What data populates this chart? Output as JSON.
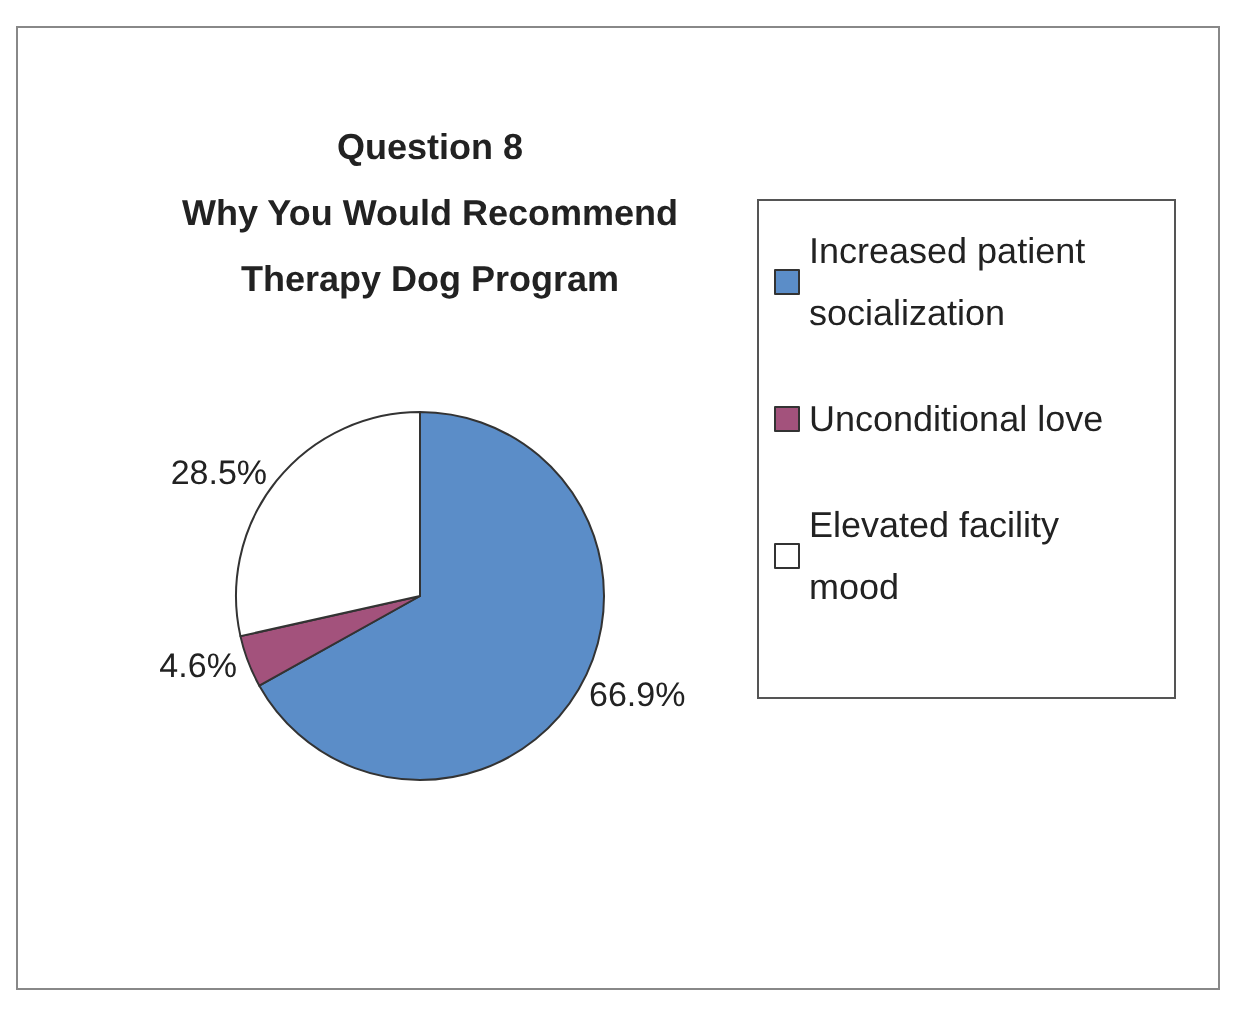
{
  "chart_data": {
    "type": "pie",
    "title": "Question 8\nWhy You Would Recommend\nTherapy Dog Program",
    "categories": [
      "Increased patient socialization",
      "Unconditional love",
      "Elevated facility mood"
    ],
    "values": [
      66.9,
      4.6,
      28.5
    ],
    "colors": [
      "#5b8dc8",
      "#a3527c",
      "#ffffff"
    ],
    "value_labels": [
      "66.9%",
      "4.6%",
      "28.5%"
    ],
    "legend": "right"
  }
}
